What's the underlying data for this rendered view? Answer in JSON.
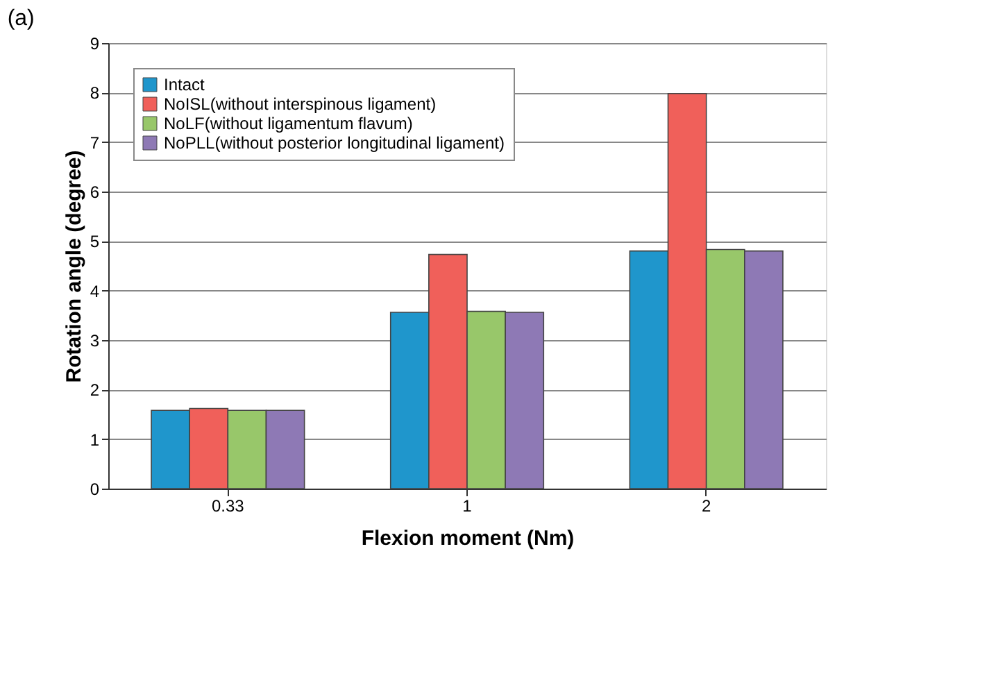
{
  "chart_data": {
    "type": "bar",
    "title": "(a)",
    "xlabel": "Flexion moment (Nm)",
    "ylabel": "Rotation angle (degree)",
    "categories": [
      "0.33",
      "1",
      "2"
    ],
    "series": [
      {
        "name": "Intact",
        "color": "#1f96cc",
        "values": [
          1.58,
          3.56,
          4.8
        ]
      },
      {
        "name": "NoISL(without interspinous ligament)",
        "color": "#f0605a",
        "values": [
          1.62,
          4.73,
          7.98
        ]
      },
      {
        "name": "NoLF(without ligamentum flavum)",
        "color": "#98c76a",
        "values": [
          1.58,
          3.58,
          4.83
        ]
      },
      {
        "name": "NoPLL(without posterior longitudinal ligament)",
        "color": "#8e79b5",
        "values": [
          1.58,
          3.56,
          4.8
        ]
      }
    ],
    "ylim": [
      0,
      9
    ],
    "yticks": [
      0,
      1,
      2,
      3,
      4,
      5,
      6,
      7,
      8,
      9
    ],
    "grid": "y",
    "legend": "top left"
  }
}
